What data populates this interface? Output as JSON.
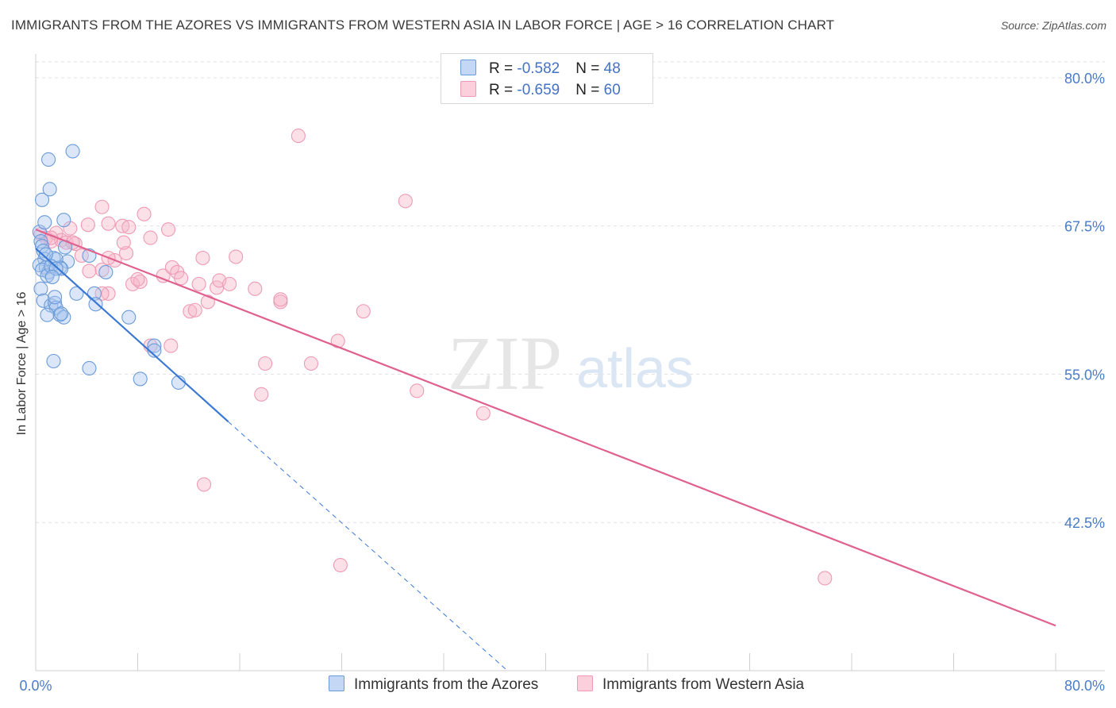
{
  "title": "IMMIGRANTS FROM THE AZORES VS IMMIGRANTS FROM WESTERN ASIA IN LABOR FORCE | AGE > 16 CORRELATION CHART",
  "source": "Source: ZipAtlas.com",
  "watermark": {
    "zip": "ZIP",
    "atlas": "atlas"
  },
  "legend": {
    "series1": {
      "r_label": "R = ",
      "r_value": "-0.582",
      "n_label": "N = ",
      "n_value": "48"
    },
    "series2": {
      "r_label": "R = ",
      "r_value": "-0.659",
      "n_label": "N = ",
      "n_value": "60"
    }
  },
  "colors": {
    "blue_fill": "#aac6ef",
    "blue_stroke": "#6a9bd8",
    "blue_line": "#3a78d4",
    "pink_fill": "#f6b6c8",
    "pink_stroke": "#ee9ab4",
    "pink_line": "#e0608e",
    "axis_text": "#4a7cc7",
    "grid": "#e2e2e2"
  },
  "chart_data": {
    "type": "scatter",
    "title": "IMMIGRANTS FROM THE AZORES VS IMMIGRANTS FROM WESTERN ASIA IN LABOR FORCE | AGE > 16 CORRELATION CHART",
    "xlabel": "",
    "ylabel": "In Labor Force | Age > 16",
    "xlim": [
      0,
      80
    ],
    "ylim": [
      30,
      82
    ],
    "x_tick_labels": [
      "0.0%",
      "80.0%"
    ],
    "y_ticks": [
      42.5,
      55.0,
      67.5,
      80.0
    ],
    "y_tick_labels": [
      "42.5%",
      "55.0%",
      "67.5%",
      "80.0%"
    ],
    "grid": true,
    "series": [
      {
        "name": "Immigrants from the Azores",
        "color": "blue",
        "points": [
          [
            0.3,
            67.0
          ],
          [
            0.4,
            66.2
          ],
          [
            0.5,
            65.8
          ],
          [
            0.6,
            65.4
          ],
          [
            0.7,
            64.7
          ],
          [
            0.3,
            64.2
          ],
          [
            0.8,
            64.0
          ],
          [
            1.0,
            63.6
          ],
          [
            0.5,
            63.8
          ],
          [
            0.9,
            63.3
          ],
          [
            0.4,
            62.2
          ],
          [
            0.6,
            61.2
          ],
          [
            1.2,
            60.8
          ],
          [
            1.5,
            61.0
          ],
          [
            1.6,
            60.6
          ],
          [
            1.9,
            60.0
          ],
          [
            0.9,
            60.0
          ],
          [
            2.2,
            59.8
          ],
          [
            0.7,
            67.8
          ],
          [
            0.5,
            69.7
          ],
          [
            1.1,
            70.6
          ],
          [
            1.0,
            73.1
          ],
          [
            2.9,
            73.8
          ],
          [
            2.2,
            68.0
          ],
          [
            2.3,
            65.7
          ],
          [
            2.5,
            64.5
          ],
          [
            1.9,
            64.0
          ],
          [
            1.4,
            64.8
          ],
          [
            1.6,
            64.7
          ],
          [
            3.2,
            61.8
          ],
          [
            4.2,
            65.0
          ],
          [
            4.6,
            61.8
          ],
          [
            4.7,
            60.9
          ],
          [
            5.5,
            63.6
          ],
          [
            7.3,
            59.8
          ],
          [
            8.2,
            54.6
          ],
          [
            9.3,
            57.4
          ],
          [
            9.3,
            57.0
          ],
          [
            11.2,
            54.3
          ],
          [
            1.4,
            56.1
          ],
          [
            4.2,
            55.5
          ],
          [
            2.0,
            60.1
          ],
          [
            1.5,
            61.5
          ],
          [
            0.8,
            65.1
          ],
          [
            1.2,
            64.1
          ],
          [
            2.0,
            63.9
          ],
          [
            1.6,
            63.9
          ],
          [
            1.3,
            63.2
          ]
        ],
        "trend": {
          "x0": 0,
          "y0": 65.6,
          "x1": 15.1,
          "y1": 51.0,
          "dash_x1": 37.0,
          "dash_y1": 30.0
        }
      },
      {
        "name": "Immigrants from Western Asia",
        "color": "pink",
        "points": [
          [
            0.4,
            66.8
          ],
          [
            0.8,
            66.5
          ],
          [
            1.2,
            66.2
          ],
          [
            1.6,
            66.9
          ],
          [
            2.0,
            66.3
          ],
          [
            2.7,
            67.3
          ],
          [
            2.4,
            66.1
          ],
          [
            3.1,
            66.0
          ],
          [
            3.6,
            65.0
          ],
          [
            4.1,
            67.6
          ],
          [
            5.2,
            69.1
          ],
          [
            5.7,
            67.7
          ],
          [
            6.8,
            67.5
          ],
          [
            7.3,
            67.4
          ],
          [
            8.5,
            68.5
          ],
          [
            9.0,
            66.5
          ],
          [
            10.4,
            67.2
          ],
          [
            7.1,
            65.2
          ],
          [
            6.9,
            66.1
          ],
          [
            6.2,
            64.6
          ],
          [
            5.2,
            63.8
          ],
          [
            4.2,
            63.7
          ],
          [
            5.7,
            61.8
          ],
          [
            5.2,
            61.8
          ],
          [
            7.6,
            62.6
          ],
          [
            8.2,
            62.8
          ],
          [
            8.0,
            63.0
          ],
          [
            10.0,
            63.3
          ],
          [
            10.7,
            64.0
          ],
          [
            11.1,
            63.6
          ],
          [
            11.4,
            63.1
          ],
          [
            12.8,
            62.6
          ],
          [
            13.1,
            64.8
          ],
          [
            14.2,
            62.3
          ],
          [
            14.4,
            62.9
          ],
          [
            15.2,
            62.6
          ],
          [
            15.7,
            64.9
          ],
          [
            17.2,
            62.2
          ],
          [
            12.1,
            60.3
          ],
          [
            12.5,
            60.4
          ],
          [
            13.5,
            61.1
          ],
          [
            19.2,
            61.1
          ],
          [
            19.2,
            61.3
          ],
          [
            25.7,
            60.3
          ],
          [
            23.7,
            57.8
          ],
          [
            21.6,
            55.9
          ],
          [
            18.0,
            55.9
          ],
          [
            10.6,
            57.4
          ],
          [
            9.0,
            57.4
          ],
          [
            17.7,
            53.3
          ],
          [
            29.9,
            53.6
          ],
          [
            35.1,
            51.7
          ],
          [
            20.6,
            75.1
          ],
          [
            29.0,
            69.6
          ],
          [
            13.2,
            45.7
          ],
          [
            23.9,
            38.9
          ],
          [
            61.9,
            37.8
          ],
          [
            5.7,
            64.8
          ],
          [
            2.9,
            66.1
          ],
          [
            1.2,
            66.5
          ]
        ],
        "trend": {
          "x0": 0,
          "y0": 67.2,
          "x1": 80,
          "y1": 33.8
        }
      }
    ]
  }
}
